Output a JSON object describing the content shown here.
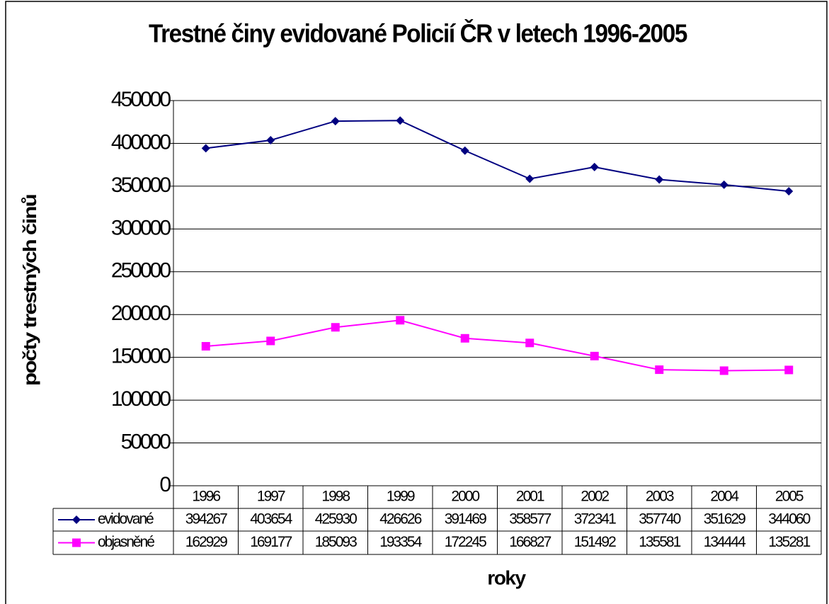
{
  "chart_data": {
    "type": "line",
    "title": "Trestné činy evidované Policií ČR v letech 1996-2005",
    "y_label": "počty trestných činů",
    "x_label": "roky",
    "categories": [
      "1996",
      "1997",
      "1998",
      "1999",
      "2000",
      "2001",
      "2002",
      "2003",
      "2004",
      "2005"
    ],
    "series": [
      {
        "name": "evidované",
        "color": "#000080",
        "marker": "diamond",
        "values": [
          394267,
          403654,
          425930,
          426626,
          391469,
          358577,
          372341,
          357740,
          351629,
          344060
        ]
      },
      {
        "name": "objasněné",
        "color": "#ff00ff",
        "marker": "square",
        "values": [
          162929,
          169177,
          185093,
          193354,
          172245,
          166827,
          151492,
          135581,
          134444,
          135281
        ]
      }
    ],
    "ylim": [
      0,
      450000
    ],
    "yticks": [
      0,
      50000,
      100000,
      150000,
      200000,
      250000,
      300000,
      350000,
      400000,
      450000
    ],
    "grid": true
  }
}
